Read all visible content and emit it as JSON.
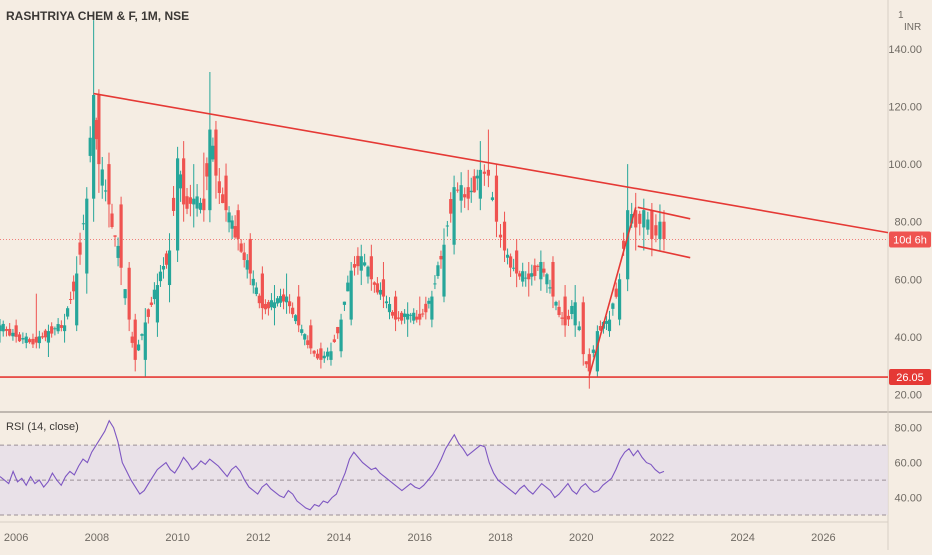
{
  "header": {
    "symbol_title": "RASHTRIYA CHEM & F, 1M, NSE",
    "currency": "INR",
    "corner_mark": "1"
  },
  "colors": {
    "background": "#f5ede3",
    "up": "#26a69a",
    "down": "#ef5350",
    "trendline": "#e53935",
    "rsi_line": "#7e57c2",
    "rsi_band": "#e6dde8",
    "grid": "#e8dfd4",
    "axis_text": "#6f6a63"
  },
  "chart_data": [
    {
      "type": "candlestick",
      "title": "RASHTRIYA CHEM & F, 1M, NSE",
      "x_ticks": [
        "2006",
        "2008",
        "2010",
        "2012",
        "2014",
        "2016",
        "2018",
        "2020",
        "2022",
        "2024",
        "2026"
      ],
      "y_ticks": [
        "20.00",
        "40.00",
        "60.00",
        "80.00",
        "100.00",
        "120.00",
        "140.00"
      ],
      "xlim": [
        2005.6,
        2027.6
      ],
      "ylim": [
        13.9,
        157
      ],
      "grid": false,
      "price_labels": [
        {
          "text": "10d 6h",
          "value": 73.8,
          "color": "#ef5350"
        },
        {
          "text": "26.05",
          "value": 26.05,
          "color": "#e53935"
        }
      ],
      "current_price_line": 73.8,
      "anchors": [
        [
          2005.6,
          42,
          46,
          38,
          44
        ],
        [
          2006.0,
          44,
          46,
          38,
          40
        ],
        [
          2006.5,
          40,
          55,
          36,
          38
        ],
        [
          2006.8,
          38,
          44,
          33,
          42
        ],
        [
          2007.2,
          42,
          48,
          38,
          44
        ],
        [
          2007.5,
          44,
          68,
          42,
          62
        ],
        [
          2007.75,
          62,
          92,
          55,
          88
        ],
        [
          2007.92,
          88,
          150,
          80,
          124
        ],
        [
          2008.05,
          124,
          126,
          90,
          100
        ],
        [
          2008.3,
          100,
          104,
          78,
          86
        ],
        [
          2008.6,
          86,
          88,
          58,
          64
        ],
        [
          2008.8,
          64,
          66,
          42,
          46
        ],
        [
          2008.95,
          46,
          48,
          28,
          32
        ],
        [
          2009.2,
          32,
          50,
          26,
          45
        ],
        [
          2009.5,
          45,
          62,
          40,
          58
        ],
        [
          2009.8,
          58,
          76,
          52,
          70
        ],
        [
          2010.0,
          70,
          106,
          66,
          102
        ],
        [
          2010.15,
          102,
          108,
          80,
          86
        ],
        [
          2010.4,
          86,
          100,
          78,
          88
        ],
        [
          2010.65,
          88,
          104,
          80,
          84
        ],
        [
          2010.8,
          84,
          132,
          82,
          112
        ],
        [
          2010.95,
          112,
          115,
          88,
          96
        ],
        [
          2011.2,
          96,
          98,
          80,
          84
        ],
        [
          2011.5,
          84,
          86,
          70,
          74
        ],
        [
          2011.8,
          74,
          76,
          58,
          62
        ],
        [
          2012.1,
          62,
          64,
          46,
          50
        ],
        [
          2012.4,
          50,
          58,
          44,
          52
        ],
        [
          2012.7,
          52,
          62,
          48,
          54
        ],
        [
          2013.0,
          54,
          58,
          42,
          44
        ],
        [
          2013.3,
          44,
          46,
          34,
          36
        ],
        [
          2013.55,
          36,
          38,
          29,
          32
        ],
        [
          2013.8,
          32,
          38,
          30,
          35
        ],
        [
          2014.05,
          35,
          48,
          34,
          46
        ],
        [
          2014.3,
          46,
          66,
          44,
          63
        ],
        [
          2014.55,
          63,
          72,
          58,
          68
        ],
        [
          2014.8,
          68,
          72,
          56,
          60
        ],
        [
          2015.1,
          60,
          66,
          50,
          54
        ],
        [
          2015.4,
          54,
          56,
          42,
          46
        ],
        [
          2015.7,
          46,
          52,
          40,
          48
        ],
        [
          2016.0,
          48,
          54,
          44,
          46
        ],
        [
          2016.3,
          46,
          56,
          44,
          54
        ],
        [
          2016.6,
          54,
          74,
          52,
          72
        ],
        [
          2016.85,
          72,
          96,
          70,
          92
        ],
        [
          2017.2,
          92,
          98,
          84,
          88
        ],
        [
          2017.5,
          88,
          108,
          84,
          98
        ],
        [
          2017.7,
          98,
          112,
          92,
          96
        ],
        [
          2017.9,
          96,
          100,
          76,
          80
        ],
        [
          2018.1,
          80,
          82,
          66,
          70
        ],
        [
          2018.4,
          70,
          74,
          58,
          62
        ],
        [
          2018.7,
          62,
          66,
          54,
          60
        ],
        [
          2019.0,
          60,
          70,
          56,
          66
        ],
        [
          2019.3,
          66,
          68,
          50,
          54
        ],
        [
          2019.6,
          54,
          58,
          40,
          44
        ],
        [
          2019.85,
          44,
          58,
          40,
          52
        ],
        [
          2020.05,
          52,
          54,
          30,
          34
        ],
        [
          2020.2,
          34,
          36,
          22,
          28
        ],
        [
          2020.4,
          28,
          44,
          26,
          42
        ],
        [
          2020.7,
          42,
          48,
          40,
          46
        ],
        [
          2020.95,
          46,
          62,
          44,
          60
        ],
        [
          2021.15,
          60,
          100,
          58,
          84
        ],
        [
          2021.35,
          84,
          90,
          70,
          78
        ],
        [
          2021.55,
          78,
          88,
          70,
          84
        ],
        [
          2021.75,
          84,
          86,
          68,
          74
        ],
        [
          2021.95,
          74,
          86,
          70,
          80
        ],
        [
          2022.05,
          80,
          84,
          70,
          74
        ]
      ],
      "overlays": [
        {
          "name": "descending resistance",
          "points": [
            [
              2007.92,
              124.5
            ],
            [
              2027.6,
              76.2
            ]
          ]
        },
        {
          "name": "support",
          "points": [
            [
              2005.6,
              26.05
            ],
            [
              2027.6,
              26.05
            ]
          ]
        },
        {
          "name": "rally line",
          "points": [
            [
              2020.2,
              26.5
            ],
            [
              2021.35,
              85
            ]
          ]
        },
        {
          "name": "channel top",
          "points": [
            [
              2021.4,
              85
            ],
            [
              2022.7,
              81
            ]
          ]
        },
        {
          "name": "channel bottom",
          "points": [
            [
              2021.4,
              71.5
            ],
            [
              2022.7,
              67.5
            ]
          ]
        }
      ]
    },
    {
      "type": "line",
      "title": "RSI (14, close)",
      "y_ticks": [
        "40.00",
        "60.00",
        "80.00"
      ],
      "ylim": [
        26,
        89
      ],
      "bands": [
        30,
        50,
        70
      ],
      "x_range": [
        2005.6,
        2022.05
      ],
      "values": [
        52,
        50,
        48,
        55,
        49,
        51,
        47,
        52,
        48,
        50,
        46,
        49,
        54,
        50,
        47,
        52,
        55,
        53,
        58,
        62,
        60,
        66,
        70,
        74,
        78,
        84,
        80,
        72,
        60,
        55,
        50,
        46,
        42,
        44,
        48,
        52,
        56,
        58,
        60,
        56,
        54,
        58,
        63,
        60,
        56,
        58,
        61,
        59,
        62,
        60,
        58,
        55,
        52,
        56,
        58,
        55,
        50,
        46,
        44,
        42,
        46,
        48,
        45,
        43,
        41,
        40,
        44,
        42,
        38,
        36,
        34,
        33,
        36,
        35,
        38,
        37,
        40,
        42,
        48,
        54,
        62,
        66,
        63,
        60,
        58,
        56,
        57,
        54,
        52,
        50,
        48,
        46,
        44,
        46,
        48,
        46,
        45,
        47,
        50,
        53,
        57,
        62,
        68,
        72,
        76,
        71,
        68,
        64,
        66,
        68,
        70,
        69,
        60,
        54,
        50,
        48,
        46,
        44,
        42,
        45,
        47,
        44,
        42,
        45,
        48,
        46,
        44,
        40,
        42,
        45,
        48,
        44,
        42,
        46,
        48,
        45,
        43,
        44,
        47,
        49,
        51,
        56,
        62,
        66,
        68,
        64,
        67,
        63,
        60,
        59,
        56,
        54,
        55
      ]
    }
  ]
}
